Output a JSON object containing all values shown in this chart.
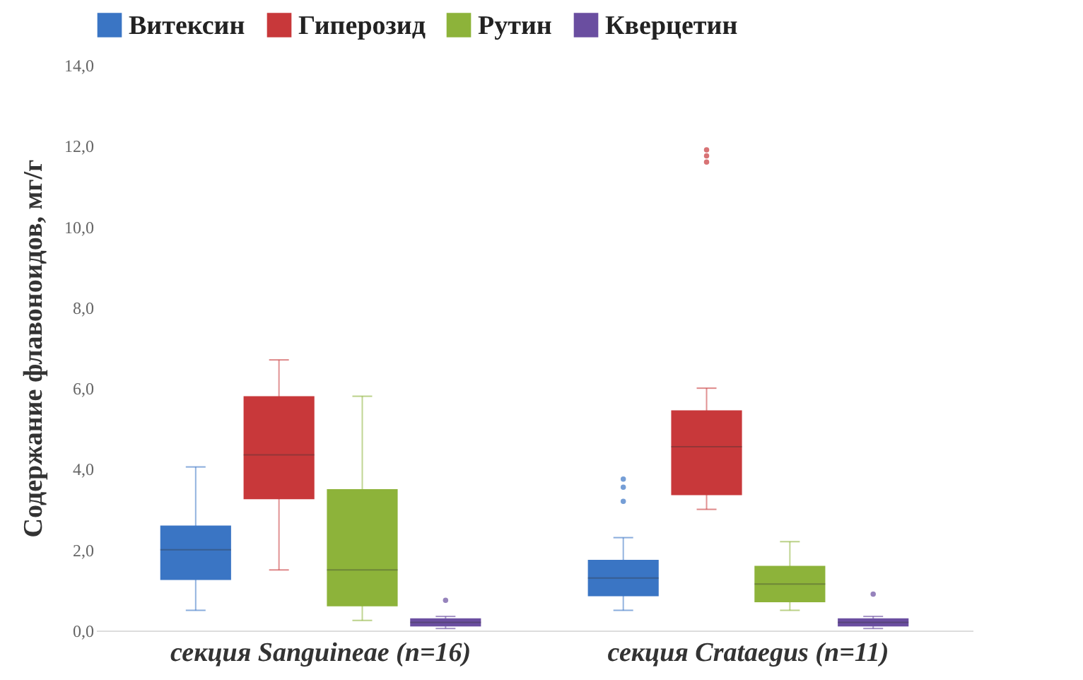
{
  "chart_data": {
    "type": "box",
    "ylabel": "Содержание флавоноидов, мг/г",
    "categories": [
      "секция Sanguineae (n=16)",
      "секция Crataegus (n=11)"
    ],
    "ylim": [
      0,
      14
    ],
    "yticks": [
      {
        "value": 0,
        "label": "0,0"
      },
      {
        "value": 2,
        "label": "2,0"
      },
      {
        "value": 4,
        "label": "4,0"
      },
      {
        "value": 6,
        "label": "6,0"
      },
      {
        "value": 8,
        "label": "8,0"
      },
      {
        "value": 10,
        "label": "10,0"
      },
      {
        "value": 12,
        "label": "12,0"
      },
      {
        "value": 14,
        "label": "14,0"
      }
    ],
    "legend": "top",
    "grid": false,
    "series": [
      {
        "name": "Витексин",
        "color": "#3a75c4",
        "boxes": [
          {
            "low": 0.5,
            "q1": 1.25,
            "median": 2.0,
            "q3": 2.6,
            "high": 4.05
          },
          {
            "low": 0.5,
            "q1": 0.85,
            "median": 1.3,
            "q3": 1.75,
            "high": 2.3,
            "outliers": [
              3.2,
              3.55,
              3.75
            ]
          }
        ]
      },
      {
        "name": "Гиперозид",
        "color": "#c8383a",
        "boxes": [
          {
            "low": 1.5,
            "q1": 3.25,
            "median": 4.35,
            "q3": 5.8,
            "high": 6.7
          },
          {
            "low": 3.0,
            "q1": 3.35,
            "median": 4.55,
            "q3": 5.45,
            "high": 6.0,
            "outliers": [
              11.6,
              11.75,
              11.9
            ]
          }
        ]
      },
      {
        "name": "Рутин",
        "color": "#8db33a",
        "boxes": [
          {
            "low": 0.25,
            "q1": 0.6,
            "median": 1.5,
            "q3": 3.5,
            "high": 5.8
          },
          {
            "low": 0.5,
            "q1": 0.7,
            "median": 1.15,
            "q3": 1.6,
            "high": 2.2
          }
        ]
      },
      {
        "name": "Кверцетин",
        "color": "#6a4ea0",
        "boxes": [
          {
            "low": 0.05,
            "q1": 0.1,
            "median": 0.2,
            "q3": 0.3,
            "high": 0.35,
            "outliers": [
              0.75
            ]
          },
          {
            "low": 0.05,
            "q1": 0.1,
            "median": 0.2,
            "q3": 0.3,
            "high": 0.35,
            "outliers": [
              0.9
            ]
          }
        ]
      }
    ]
  }
}
